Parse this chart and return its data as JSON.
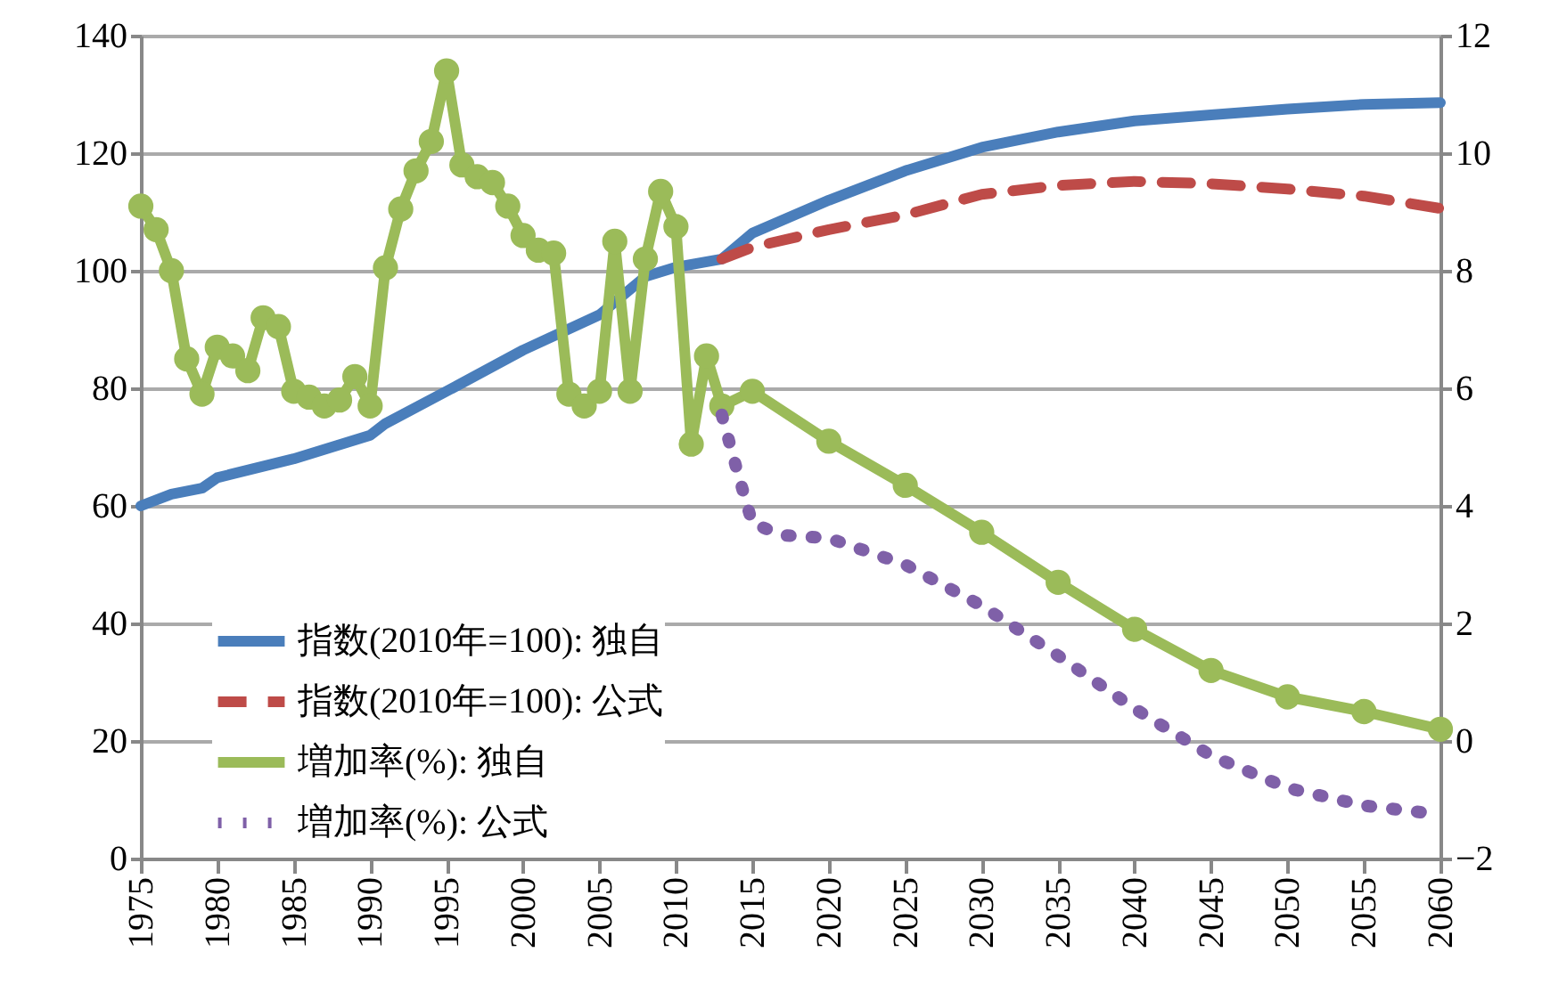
{
  "chart_data": {
    "type": "line",
    "xlim": [
      1975,
      2060
    ],
    "xticks": [
      1975,
      1980,
      1985,
      1990,
      1995,
      2000,
      2005,
      2010,
      2015,
      2020,
      2025,
      2030,
      2035,
      2040,
      2045,
      2050,
      2055,
      2060
    ],
    "ylim": [
      0,
      140
    ],
    "yticks": [
      0,
      20,
      40,
      60,
      80,
      100,
      120,
      140
    ],
    "y2lim": [
      -2,
      12
    ],
    "y2ticks": [
      -2,
      0,
      2,
      4,
      6,
      8,
      10,
      12
    ],
    "grid": "y",
    "legend": "bottom left",
    "series": [
      {
        "name": "指数(2010年=100): 独自",
        "color": "#4a7ebb",
        "line_style": "solid",
        "marker": "none",
        "x": [
          1975,
          1977,
          1979,
          1980,
          1985,
          1990,
          1991,
          1995,
          2000,
          2005,
          2008,
          2010,
          2013,
          2015,
          2020,
          2025,
          2030,
          2035,
          2040,
          2045,
          2050,
          2055,
          2060
        ],
        "values": [
          60,
          62,
          63,
          64.8,
          68,
          72,
          74,
          79.5,
          86.5,
          92.5,
          99,
          100.6,
          102,
          106.4,
          112,
          117,
          121,
          123.6,
          125.5,
          126.5,
          127.5,
          128.3,
          128.6
        ]
      },
      {
        "name": "指数(2010年=100): 公式",
        "color": "#be4b48",
        "line_style": "dashed",
        "marker": "none",
        "x": [
          2013,
          2015,
          2020,
          2025,
          2030,
          2035,
          2040,
          2045,
          2050,
          2055,
          2060
        ],
        "values": [
          102,
          104,
          107,
          109.5,
          113,
          114.5,
          115.2,
          114.8,
          113.9,
          112.7,
          110.6
        ]
      },
      {
        "name": "増加率(%): 独自",
        "color": "#9bbb59",
        "line_style": "solid",
        "marker": "circle",
        "axis": "y2",
        "x": [
          1975,
          1976,
          1977,
          1978,
          1979,
          1980,
          1981,
          1982,
          1983,
          1984,
          1985,
          1986,
          1987,
          1988,
          1989,
          1990,
          1991,
          1992,
          1993,
          1994,
          1995,
          1996,
          1997,
          1998,
          1999,
          2000,
          2001,
          2002,
          2003,
          2004,
          2005,
          2006,
          2007,
          2008,
          2009,
          2010,
          2011,
          2012,
          2013,
          2015,
          2020,
          2025,
          2030,
          2035,
          2040,
          2045,
          2050,
          2055,
          2060
        ],
        "values": [
          9.1,
          8.7,
          8.0,
          6.5,
          5.9,
          6.7,
          6.55,
          6.3,
          7.2,
          7.05,
          5.95,
          5.85,
          5.7,
          5.8,
          6.2,
          5.7,
          8.05,
          9.05,
          9.7,
          10.2,
          11.4,
          9.8,
          9.6,
          9.5,
          9.1,
          8.6,
          8.35,
          8.3,
          5.9,
          5.7,
          5.95,
          8.5,
          5.95,
          8.2,
          9.35,
          8.75,
          5.05,
          6.55,
          5.7,
          5.95,
          5.1,
          4.35,
          3.55,
          2.7,
          1.9,
          1.2,
          0.75,
          0.5,
          0.2
        ]
      },
      {
        "name": "増加率(%): 公式",
        "color": "#7f60a8",
        "line_style": "dotted",
        "marker": "none",
        "axis": "y2",
        "x": [
          2013,
          2014,
          2015,
          2017,
          2020,
          2025,
          2030,
          2035,
          2040,
          2045,
          2050,
          2055,
          2060
        ],
        "values": [
          5.55,
          4.6,
          3.7,
          3.5,
          3.45,
          3.0,
          2.3,
          1.45,
          0.55,
          -0.25,
          -0.8,
          -1.1,
          -1.25
        ]
      }
    ]
  }
}
